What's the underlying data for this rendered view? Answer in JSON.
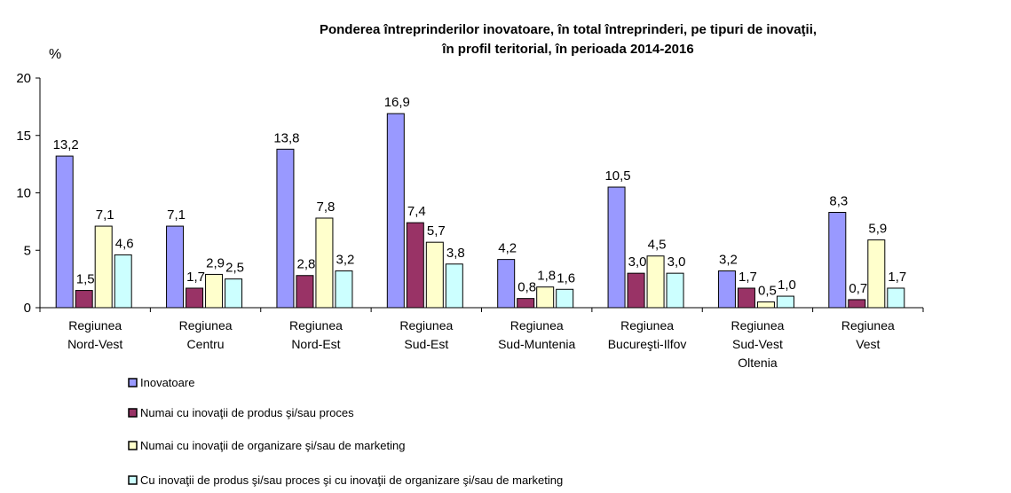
{
  "chart_data": {
    "type": "bar",
    "title": [
      "Ponderea întreprinderilor inovatoare, în total întreprinderi, pe tipuri de inovaţii,",
      "în profil teritorial, în perioada 2014-2016"
    ],
    "ylabel": "%",
    "categories": [
      [
        "Regiunea",
        "Nord-Vest"
      ],
      [
        "Regiunea",
        "Centru"
      ],
      [
        "Regiunea",
        "Nord-Est"
      ],
      [
        "Regiunea",
        "Sud-Est"
      ],
      [
        "Regiunea",
        "Sud-Muntenia"
      ],
      [
        "Regiunea",
        "Bucureşti-Ilfov"
      ],
      [
        "Regiunea",
        "Sud-Vest",
        "Oltenia"
      ],
      [
        "Regiunea",
        "Vest"
      ]
    ],
    "series": [
      {
        "name": "Inovatoare",
        "color": "#9999ff",
        "values": [
          13.2,
          7.1,
          13.8,
          16.9,
          4.2,
          10.5,
          3.2,
          8.3
        ],
        "value_labels": [
          "13,2",
          "7,1",
          "13,8",
          "16,9",
          "4,2",
          "10,5",
          "3,2",
          "8,3"
        ]
      },
      {
        "name": "Numai cu inovaţii de produs şi/sau proces",
        "color": "#993366",
        "values": [
          1.5,
          1.7,
          2.8,
          7.4,
          0.8,
          3.0,
          1.7,
          0.7
        ],
        "value_labels": [
          "1,5",
          "1,7",
          "2,8",
          "7,4",
          "0,8",
          "3,0",
          "1,7",
          "0,7"
        ]
      },
      {
        "name": "Numai cu inovaţii de organizare şi/sau de marketing",
        "color": "#ffffcc",
        "values": [
          7.1,
          2.9,
          7.8,
          5.7,
          1.8,
          4.5,
          0.5,
          5.9
        ],
        "value_labels": [
          "7,1",
          "2,9",
          "7,8",
          "5,7",
          "1,8",
          "4,5",
          "0,5",
          "5,9"
        ]
      },
      {
        "name": "Cu inovaţii de produs şi/sau proces şi cu inovaţii de organizare şi/sau de marketing",
        "color": "#ccffff",
        "values": [
          4.6,
          2.5,
          3.2,
          3.8,
          1.6,
          3.0,
          1.0,
          1.7
        ],
        "value_labels": [
          "4,6",
          "2,5",
          "3,2",
          "3,8",
          "1,6",
          "3,0",
          "1,0",
          "1,7"
        ]
      }
    ],
    "ylim": [
      0,
      20
    ],
    "yticks": [
      0,
      5,
      10,
      15,
      20
    ],
    "grid": false
  }
}
